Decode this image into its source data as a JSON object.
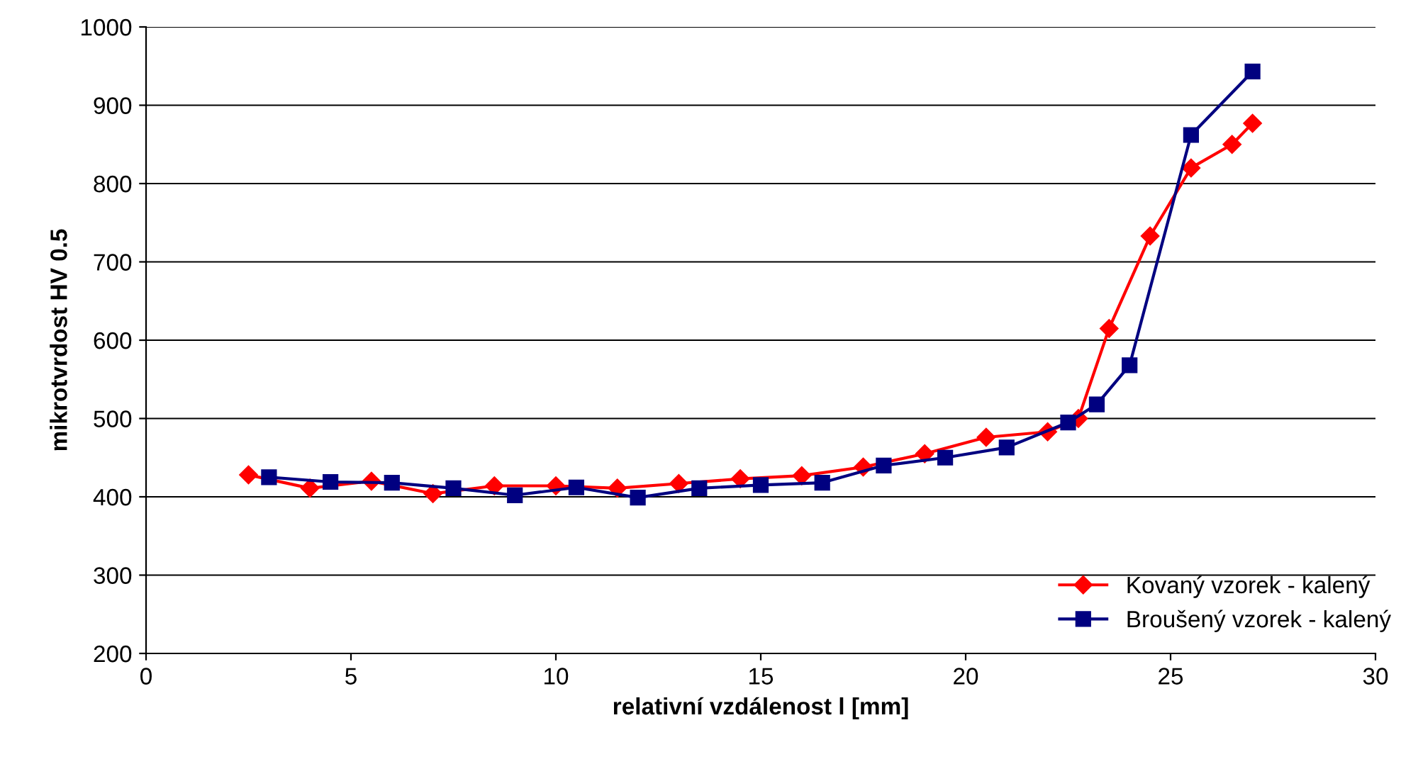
{
  "chart_data": {
    "type": "line",
    "xlabel": "relativní vzdálenost l [mm]",
    "ylabel": "mikrotvrdost HV 0.5",
    "xlim": [
      0,
      30
    ],
    "xticks": [
      0,
      5,
      10,
      15,
      20,
      25,
      30
    ],
    "ylim": [
      200,
      1000
    ],
    "yticks": [
      200,
      300,
      400,
      500,
      600,
      700,
      800,
      900,
      1000
    ],
    "grid": "y",
    "legend": "bottom right",
    "series": [
      {
        "name": "Kovaný vzorek - kalený",
        "color": "#ff0000",
        "marker": "diamond",
        "x": [
          2.5,
          4,
          5.5,
          7,
          8.5,
          10,
          11.5,
          13,
          14.5,
          16,
          17.5,
          19,
          20.5,
          22,
          22.75,
          23.5,
          24.5,
          25.5,
          26.5,
          27
        ],
        "values": [
          428,
          411,
          420,
          404,
          414,
          414,
          411,
          417,
          423,
          427,
          438,
          455,
          476,
          483,
          500,
          615,
          733,
          820,
          850,
          877
        ]
      },
      {
        "name": "Broušený vzorek - kalený",
        "color": "#000080",
        "marker": "square",
        "x": [
          3,
          4.5,
          6,
          7.5,
          9,
          10.5,
          12,
          13.5,
          15,
          16.5,
          18,
          19.5,
          21,
          22.5,
          23.2,
          24,
          25.5,
          27
        ],
        "values": [
          425,
          419,
          418,
          411,
          402,
          412,
          399,
          411,
          415,
          418,
          440,
          450,
          463,
          495,
          518,
          568,
          862,
          943
        ]
      }
    ]
  }
}
